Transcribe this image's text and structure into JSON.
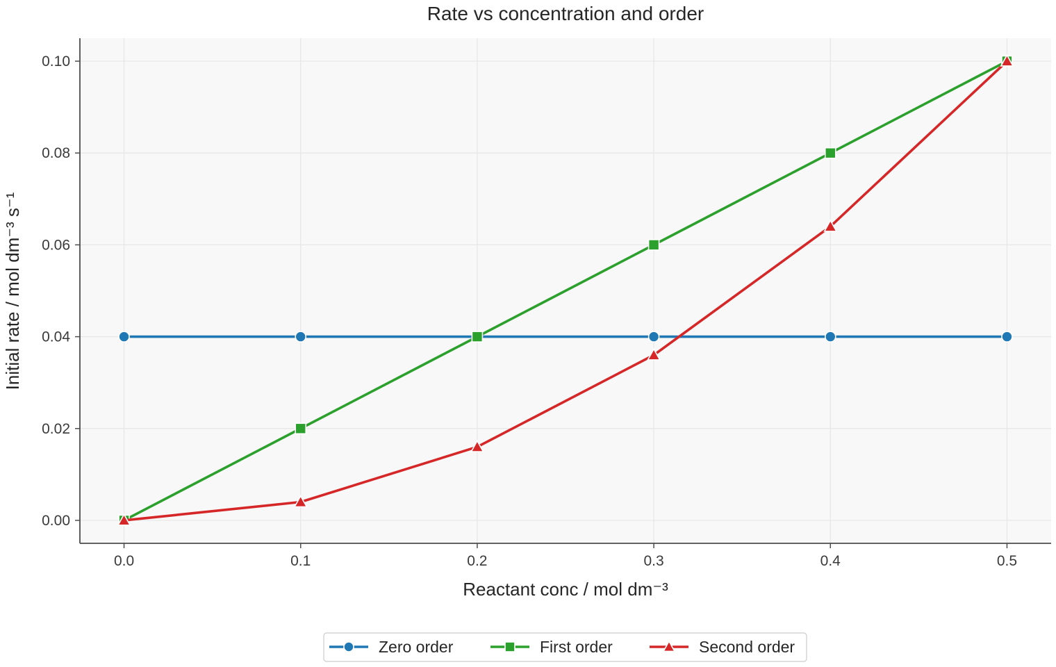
{
  "chart_data": {
    "type": "line",
    "title": "Rate vs concentration and order",
    "xlabel": "Reactant conc / mol dm⁻³",
    "ylabel": "Initial rate / mol dm⁻³ s⁻¹",
    "x": [
      0.0,
      0.1,
      0.2,
      0.3,
      0.4,
      0.5
    ],
    "x_ticks": [
      "0.0",
      "0.1",
      "0.2",
      "0.3",
      "0.4",
      "0.5"
    ],
    "y_ticks": [
      "0.00",
      "0.02",
      "0.04",
      "0.06",
      "0.08",
      "0.10"
    ],
    "y_tick_values": [
      0.0,
      0.02,
      0.04,
      0.06,
      0.08,
      0.1
    ],
    "xlim": [
      -0.025,
      0.525
    ],
    "ylim": [
      -0.005,
      0.105
    ],
    "grid": true,
    "legend_position": "bottom-center",
    "series": [
      {
        "name": "Zero order",
        "color": "#1f77b4",
        "marker": "circle",
        "values": [
          0.04,
          0.04,
          0.04,
          0.04,
          0.04,
          0.04
        ]
      },
      {
        "name": "First order",
        "color": "#2ca02c",
        "marker": "square",
        "values": [
          0.0,
          0.02,
          0.04,
          0.06,
          0.08,
          0.1
        ]
      },
      {
        "name": "Second order",
        "color": "#d62728",
        "marker": "triangle",
        "values": [
          0.0,
          0.004,
          0.016,
          0.036,
          0.064,
          0.1
        ]
      }
    ],
    "colors": {
      "plot_background": "#f8f8f8",
      "grid": "#e6e6e6",
      "axis": "#4d4d4d"
    }
  }
}
